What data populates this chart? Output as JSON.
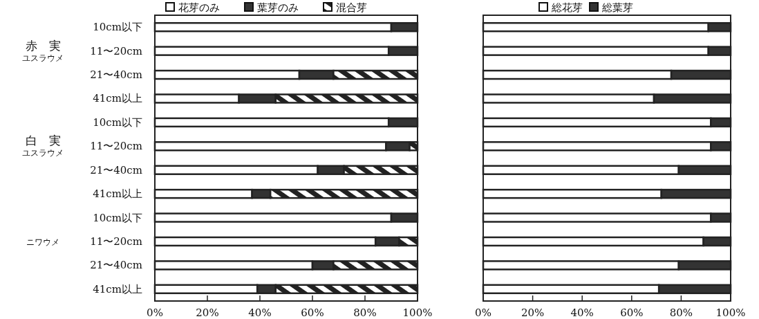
{
  "chart_data": [
    {
      "type": "bar",
      "orientation": "horizontal",
      "stacked": true,
      "legend": "top",
      "categories": [
        "10cm以下",
        "11〜20cm",
        "21〜40cm",
        "41cm以上",
        "10cm以下",
        "11〜20cm",
        "21〜40cm",
        "41cm以上",
        "10cm以下",
        "11〜20cm",
        "21〜40cm",
        "41cm以上"
      ],
      "series": [
        {
          "name": "花芽のみ",
          "color": "#ffffff",
          "values": [
            90,
            89,
            55,
            32,
            89,
            88,
            62,
            37,
            90,
            84,
            60,
            39
          ]
        },
        {
          "name": "葉芽のみ",
          "color": "#333333",
          "values": [
            10,
            11,
            13,
            14,
            11,
            9,
            10,
            7,
            10,
            9,
            8,
            7
          ]
        },
        {
          "name": "混合芽",
          "color": "#222222",
          "values": [
            0,
            0,
            32,
            54,
            0,
            3,
            28,
            56,
            0,
            7,
            32,
            54
          ]
        }
      ],
      "xlim": [
        0,
        100
      ],
      "xticks": [
        {
          "value": 0,
          "label": "0%"
        },
        {
          "value": 20,
          "label": "20%"
        },
        {
          "value": 40,
          "label": "40%"
        },
        {
          "value": 60,
          "label": "60%"
        },
        {
          "value": 80,
          "label": "80%"
        },
        {
          "value": 100,
          "label": "100%"
        }
      ],
      "annotations": [
        "赤　実",
        "ユスラウメ",
        "白　実",
        "ユスラウメ",
        "ニワウメ"
      ]
    },
    {
      "type": "bar",
      "orientation": "horizontal",
      "stacked": true,
      "legend": "top",
      "categories": [
        null,
        null,
        null,
        null,
        null,
        null,
        null,
        null,
        null,
        null,
        null,
        null
      ],
      "series": [
        {
          "name": "総花芽",
          "color": "#ffffff",
          "values": [
            91,
            91,
            76,
            69,
            92,
            92,
            79,
            72,
            92,
            89,
            79,
            71
          ]
        },
        {
          "name": "総葉芽",
          "color": "#333333",
          "values": [
            9,
            9,
            24,
            31,
            8,
            8,
            21,
            28,
            8,
            11,
            21,
            29
          ]
        }
      ],
      "xlim": [
        0,
        100
      ],
      "xticks": [
        {
          "value": 0,
          "label": "0%"
        },
        {
          "value": 20,
          "label": "20%"
        },
        {
          "value": 40,
          "label": "40%"
        },
        {
          "value": 60,
          "label": "60%"
        },
        {
          "value": 80,
          "label": "80%"
        },
        {
          "value": 100,
          "label": "100%"
        }
      ]
    }
  ]
}
